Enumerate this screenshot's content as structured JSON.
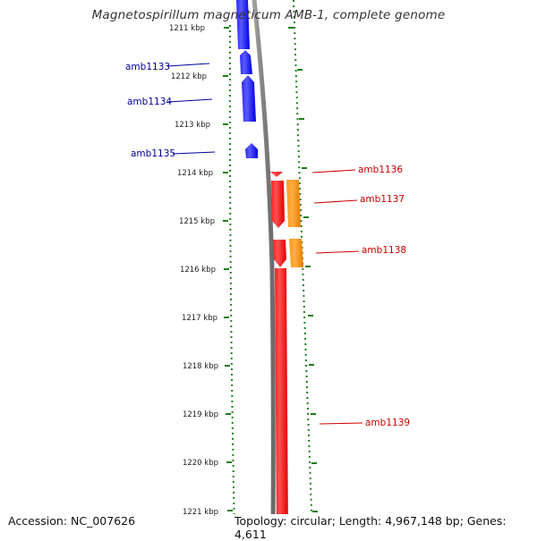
{
  "title": "Magnetospirillum magneticum AMB-1, complete genome",
  "accession_text": "Accession: NC_007626",
  "summary_text": "Topology: circular; Length: 4,967,148 bp; Genes: 4,611",
  "colors": {
    "forward_gene": "#0000ff",
    "reverse_gene": "#ff0000",
    "orange_feature": "#ff8c00",
    "backbone": "#888888",
    "ruler": "#1e7e1e",
    "forward_label": "#000099",
    "reverse_label": "#cc0000"
  },
  "ticks": [
    {
      "label": "1211 kbp"
    },
    {
      "label": "1212 kbp"
    },
    {
      "label": "1213 kbp"
    },
    {
      "label": "1214 kbp"
    },
    {
      "label": "1215 kbp"
    },
    {
      "label": "1216 kbp"
    },
    {
      "label": "1217 kbp"
    },
    {
      "label": "1218 kbp"
    },
    {
      "label": "1219 kbp"
    },
    {
      "label": "1220 kbp"
    },
    {
      "label": "1221 kbp"
    }
  ],
  "genes": [
    {
      "name": "amb1133",
      "strand": "forward"
    },
    {
      "name": "amb1134",
      "strand": "forward"
    },
    {
      "name": "amb1135",
      "strand": "forward"
    },
    {
      "name": "amb1136",
      "strand": "reverse"
    },
    {
      "name": "amb1137",
      "strand": "reverse"
    },
    {
      "name": "amb1138",
      "strand": "reverse"
    },
    {
      "name": "amb1139",
      "strand": "reverse"
    }
  ]
}
